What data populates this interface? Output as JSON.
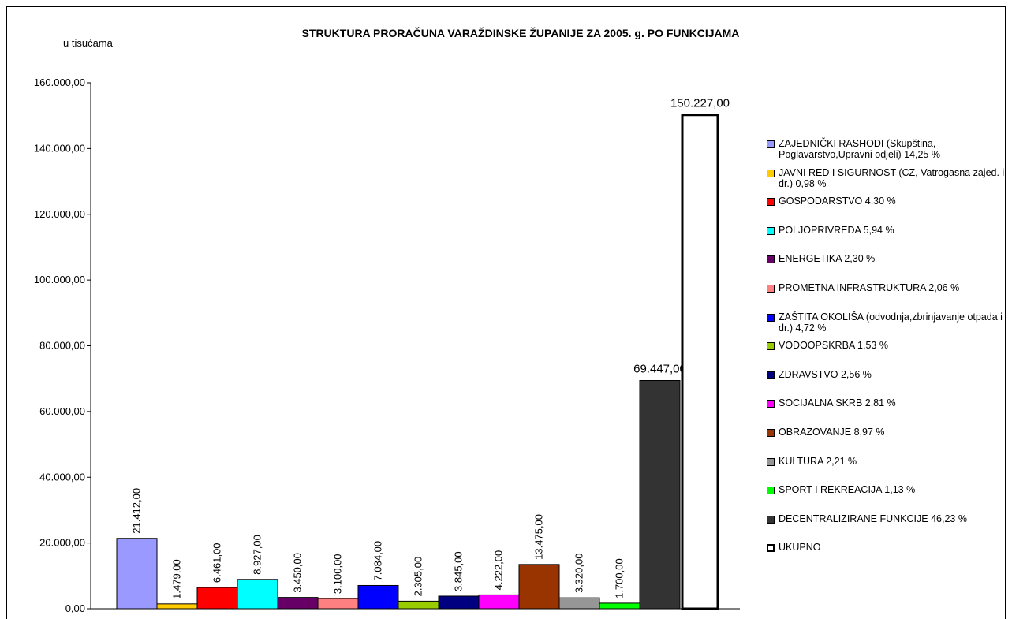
{
  "chart_data": {
    "type": "bar",
    "title": "STRUKTURA PRORAČUNA VARAŽDINSKE ŽUPANIJE ZA 2005. g. PO FUNKCIJAMA",
    "ylabel": "u tisućama",
    "ylim": [
      0,
      160000
    ],
    "yticks": [
      {
        "value": 0,
        "label": "0,00"
      },
      {
        "value": 20000,
        "label": "20.000,00"
      },
      {
        "value": 40000,
        "label": "40.000,00"
      },
      {
        "value": 60000,
        "label": "60.000,00"
      },
      {
        "value": 80000,
        "label": "80.000,00"
      },
      {
        "value": 100000,
        "label": "100.000,00"
      },
      {
        "value": 120000,
        "label": "120.000,00"
      },
      {
        "value": 140000,
        "label": "140.000,00"
      },
      {
        "value": 160000,
        "label": "160.000,00"
      }
    ],
    "legend": "right",
    "series": [
      {
        "name": "ZAJEDNIČKI RASHODI (Skupština, Poglavarstvo,Upravni odjeli) 14,25 %",
        "color": "#9999ff",
        "values": [
          21412
        ],
        "value_labels": [
          "21.412,00"
        ]
      },
      {
        "name": "JAVNI RED I SIGURNOST (CZ, Vatrogasna zajed. i dr.) 0,98 %",
        "color": "#ffcc00",
        "values": [
          1479
        ],
        "value_labels": [
          "1.479,00"
        ]
      },
      {
        "name": "GOSPODARSTVO 4,30 %",
        "color": "#ff0000",
        "values": [
          6461
        ],
        "value_labels": [
          "6.461,00"
        ]
      },
      {
        "name": "POLJOPRIVREDA 5,94 %",
        "color": "#00ffff",
        "values": [
          8927
        ],
        "value_labels": [
          "8.927,00"
        ]
      },
      {
        "name": "ENERGETIKA 2,30 %",
        "color": "#660066",
        "values": [
          3450
        ],
        "value_labels": [
          "3.450,00"
        ]
      },
      {
        "name": "PROMETNA INFRASTRUKTURA 2,06 %",
        "color": "#ff8080",
        "values": [
          3100
        ],
        "value_labels": [
          "3.100,00"
        ]
      },
      {
        "name": "ZAŠTITA OKOLIŠA (odvodnja,zbrinjavanje otpada i dr.) 4,72 %",
        "color": "#0000ff",
        "values": [
          7084
        ],
        "value_labels": [
          "7.084,00"
        ]
      },
      {
        "name": "VODOOPSKRBA 1,53 %",
        "color": "#99cc00",
        "values": [
          2305
        ],
        "value_labels": [
          "2.305,00"
        ]
      },
      {
        "name": "ZDRAVSTVO 2,56 %",
        "color": "#000080",
        "values": [
          3845
        ],
        "value_labels": [
          "3.845,00"
        ]
      },
      {
        "name": "SOCIJALNA SKRB 2,81 %",
        "color": "#ff00ff",
        "values": [
          4222
        ],
        "value_labels": [
          "4.222,00"
        ]
      },
      {
        "name": "OBRAZOVANJE 8,97 %",
        "color": "#993300",
        "values": [
          13475
        ],
        "value_labels": [
          "13.475,00"
        ]
      },
      {
        "name": "KULTURA 2,21 %",
        "color": "#969696",
        "values": [
          3320
        ],
        "value_labels": [
          "3.320,00"
        ]
      },
      {
        "name": "SPORT I REKREACIJA 1,13 %",
        "color": "#00ff00",
        "values": [
          1700
        ],
        "value_labels": [
          "1.700,00"
        ]
      },
      {
        "name": "DECENTRALIZIRANE FUNKCIJE 46,23 %",
        "color": "#333333",
        "values": [
          69447
        ],
        "value_labels": [
          "69.447,00"
        ]
      },
      {
        "name": "UKUPNO",
        "color": "#ffffff",
        "values": [
          150227
        ],
        "value_labels": [
          "150.227,00"
        ]
      }
    ]
  }
}
